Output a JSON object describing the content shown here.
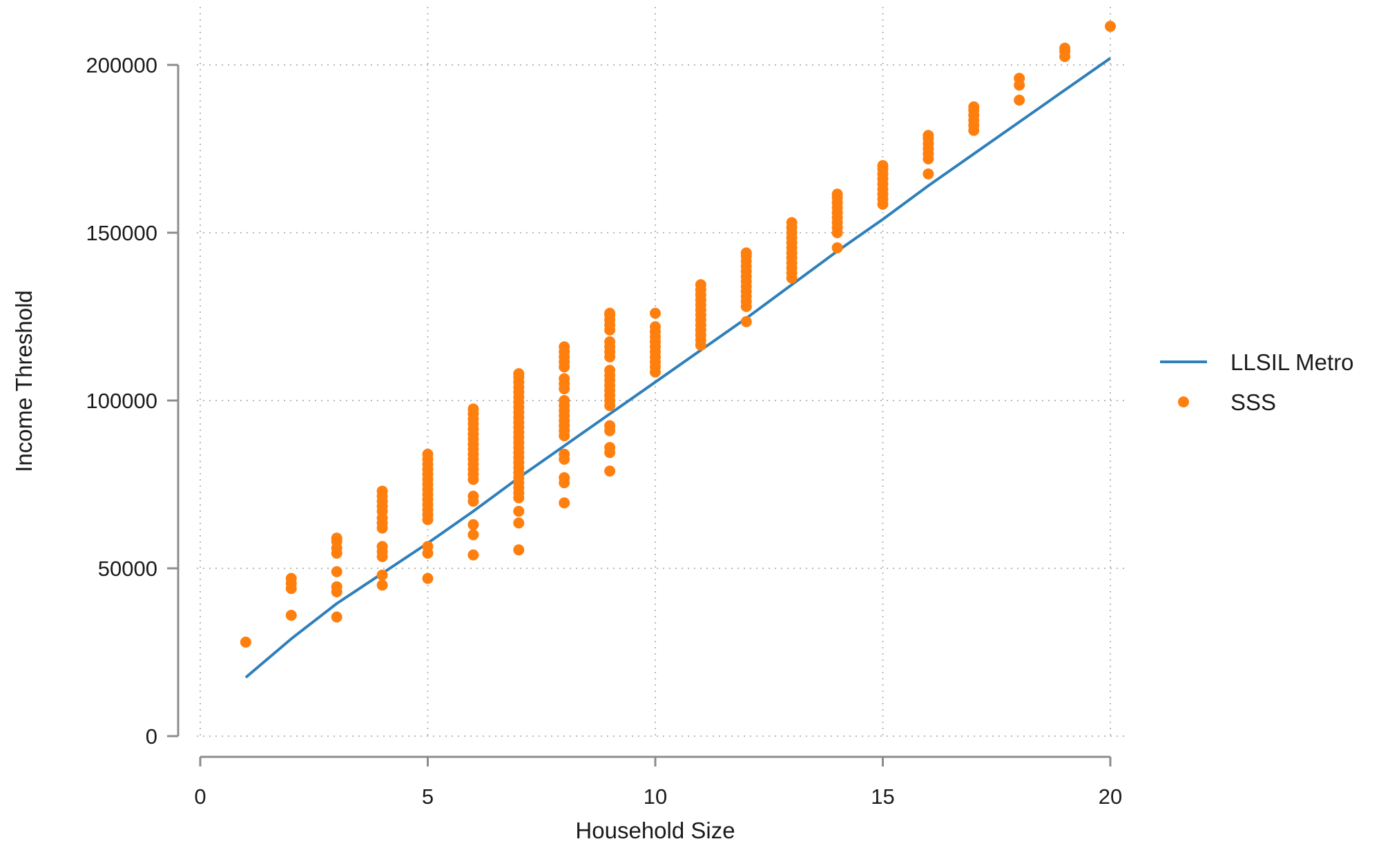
{
  "chart_data": {
    "type": "scatter",
    "title": "",
    "xlabel": "Household Size",
    "ylabel": "Income Threshold",
    "xlim": [
      0,
      20
    ],
    "ylim": [
      0,
      200000
    ],
    "x_ticks": [
      0,
      5,
      10,
      15,
      20
    ],
    "y_ticks": [
      0,
      50000,
      100000,
      150000,
      200000
    ],
    "grid": true,
    "legend_position": "right",
    "series": [
      {
        "name": "LLSIL Metro",
        "kind": "line",
        "color": "#2f7fba",
        "points": [
          [
            1,
            17500
          ],
          [
            2,
            29000
          ],
          [
            3,
            39500
          ],
          [
            4,
            48500
          ],
          [
            5,
            57500
          ],
          [
            6,
            67000
          ],
          [
            7,
            77000
          ],
          [
            8,
            86500
          ],
          [
            9,
            96000
          ],
          [
            10,
            105500
          ],
          [
            11,
            115000
          ],
          [
            12,
            124500
          ],
          [
            13,
            134500
          ],
          [
            14,
            144500
          ],
          [
            15,
            154000
          ],
          [
            16,
            164000
          ],
          [
            17,
            173500
          ],
          [
            18,
            183000
          ],
          [
            19,
            192500
          ],
          [
            20,
            202000
          ]
        ]
      },
      {
        "name": "SSS",
        "kind": "scatter",
        "color": "#ff7f0e",
        "points": [
          [
            1,
            28000
          ],
          [
            2,
            36000
          ],
          [
            2,
            44000
          ],
          [
            2,
            45500
          ],
          [
            2,
            47000
          ],
          [
            3,
            35500
          ],
          [
            3,
            43000
          ],
          [
            3,
            44500
          ],
          [
            3,
            49000
          ],
          [
            3,
            54500
          ],
          [
            3,
            56000
          ],
          [
            3,
            58000
          ],
          [
            3,
            59000
          ],
          [
            4,
            45000
          ],
          [
            4,
            48000
          ],
          [
            4,
            53500
          ],
          [
            4,
            55000
          ],
          [
            4,
            56500
          ],
          [
            4,
            62000
          ],
          [
            4,
            63500
          ],
          [
            4,
            65000
          ],
          [
            4,
            67000
          ],
          [
            4,
            68500
          ],
          [
            4,
            70000
          ],
          [
            4,
            71500
          ],
          [
            4,
            73000
          ],
          [
            5,
            47000
          ],
          [
            5,
            54500
          ],
          [
            5,
            56500
          ],
          [
            5,
            64500
          ],
          [
            5,
            66000
          ],
          [
            5,
            67500
          ],
          [
            5,
            69000
          ],
          [
            5,
            70500
          ],
          [
            5,
            72000
          ],
          [
            5,
            73500
          ],
          [
            5,
            75000
          ],
          [
            5,
            76500
          ],
          [
            5,
            78000
          ],
          [
            5,
            79500
          ],
          [
            5,
            81000
          ],
          [
            5,
            82500
          ],
          [
            5,
            84000
          ],
          [
            6,
            54000
          ],
          [
            6,
            60000
          ],
          [
            6,
            63000
          ],
          [
            6,
            70000
          ],
          [
            6,
            71500
          ],
          [
            6,
            76500
          ],
          [
            6,
            78000
          ],
          [
            6,
            79500
          ],
          [
            6,
            81000
          ],
          [
            6,
            82500
          ],
          [
            6,
            84000
          ],
          [
            6,
            85500
          ],
          [
            6,
            87000
          ],
          [
            6,
            88500
          ],
          [
            6,
            90000
          ],
          [
            6,
            91500
          ],
          [
            6,
            93000
          ],
          [
            6,
            94500
          ],
          [
            6,
            96000
          ],
          [
            6,
            97500
          ],
          [
            7,
            55500
          ],
          [
            7,
            63500
          ],
          [
            7,
            67000
          ],
          [
            7,
            71000
          ],
          [
            7,
            72500
          ],
          [
            7,
            74000
          ],
          [
            7,
            75500
          ],
          [
            7,
            77000
          ],
          [
            7,
            78500
          ],
          [
            7,
            80000
          ],
          [
            7,
            81500
          ],
          [
            7,
            83000
          ],
          [
            7,
            84500
          ],
          [
            7,
            86000
          ],
          [
            7,
            87500
          ],
          [
            7,
            89000
          ],
          [
            7,
            90500
          ],
          [
            7,
            92000
          ],
          [
            7,
            93500
          ],
          [
            7,
            95000
          ],
          [
            7,
            96500
          ],
          [
            7,
            98000
          ],
          [
            7,
            99500
          ],
          [
            7,
            101000
          ],
          [
            7,
            102500
          ],
          [
            7,
            104000
          ],
          [
            7,
            105500
          ],
          [
            7,
            107000
          ],
          [
            7,
            108000
          ],
          [
            8,
            69500
          ],
          [
            8,
            75500
          ],
          [
            8,
            77000
          ],
          [
            8,
            82500
          ],
          [
            8,
            84000
          ],
          [
            8,
            89500
          ],
          [
            8,
            91000
          ],
          [
            8,
            92500
          ],
          [
            8,
            94000
          ],
          [
            8,
            95500
          ],
          [
            8,
            97000
          ],
          [
            8,
            98500
          ],
          [
            8,
            100000
          ],
          [
            8,
            103500
          ],
          [
            8,
            105000
          ],
          [
            8,
            106500
          ],
          [
            8,
            110000
          ],
          [
            8,
            111500
          ],
          [
            8,
            113000
          ],
          [
            8,
            114500
          ],
          [
            8,
            116000
          ],
          [
            9,
            79000
          ],
          [
            9,
            84500
          ],
          [
            9,
            86000
          ],
          [
            9,
            91000
          ],
          [
            9,
            92500
          ],
          [
            9,
            98500
          ],
          [
            9,
            100000
          ],
          [
            9,
            101500
          ],
          [
            9,
            103000
          ],
          [
            9,
            104500
          ],
          [
            9,
            106000
          ],
          [
            9,
            107500
          ],
          [
            9,
            109000
          ],
          [
            9,
            113000
          ],
          [
            9,
            114500
          ],
          [
            9,
            116000
          ],
          [
            9,
            117500
          ],
          [
            9,
            121000
          ],
          [
            9,
            122500
          ],
          [
            9,
            124000
          ],
          [
            9,
            125500
          ],
          [
            9,
            126000
          ],
          [
            10,
            108500
          ],
          [
            10,
            110000
          ],
          [
            10,
            111500
          ],
          [
            10,
            113000
          ],
          [
            10,
            114500
          ],
          [
            10,
            116000
          ],
          [
            10,
            117500
          ],
          [
            10,
            119000
          ],
          [
            10,
            120500
          ],
          [
            10,
            122000
          ],
          [
            10,
            126000
          ],
          [
            11,
            116500
          ],
          [
            11,
            118000
          ],
          [
            11,
            119500
          ],
          [
            11,
            121000
          ],
          [
            11,
            122500
          ],
          [
            11,
            124000
          ],
          [
            11,
            125500
          ],
          [
            11,
            127000
          ],
          [
            11,
            128500
          ],
          [
            11,
            130000
          ],
          [
            11,
            131500
          ],
          [
            11,
            133000
          ],
          [
            11,
            134500
          ],
          [
            12,
            123500
          ],
          [
            12,
            128000
          ],
          [
            12,
            129500
          ],
          [
            12,
            131000
          ],
          [
            12,
            132500
          ],
          [
            12,
            134000
          ],
          [
            12,
            135500
          ],
          [
            12,
            137000
          ],
          [
            12,
            138500
          ],
          [
            12,
            140000
          ],
          [
            12,
            141500
          ],
          [
            12,
            143000
          ],
          [
            12,
            144000
          ],
          [
            13,
            136500
          ],
          [
            13,
            138000
          ],
          [
            13,
            139500
          ],
          [
            13,
            141000
          ],
          [
            13,
            142500
          ],
          [
            13,
            144000
          ],
          [
            13,
            145500
          ],
          [
            13,
            147000
          ],
          [
            13,
            148500
          ],
          [
            13,
            150000
          ],
          [
            13,
            151500
          ],
          [
            13,
            153000
          ],
          [
            14,
            145500
          ],
          [
            14,
            150000
          ],
          [
            14,
            151500
          ],
          [
            14,
            153000
          ],
          [
            14,
            154500
          ],
          [
            14,
            156000
          ],
          [
            14,
            157500
          ],
          [
            14,
            159000
          ],
          [
            14,
            160500
          ],
          [
            14,
            161500
          ],
          [
            15,
            158500
          ],
          [
            15,
            160000
          ],
          [
            15,
            161500
          ],
          [
            15,
            163000
          ],
          [
            15,
            164500
          ],
          [
            15,
            166000
          ],
          [
            15,
            167500
          ],
          [
            15,
            169000
          ],
          [
            15,
            170000
          ],
          [
            16,
            167500
          ],
          [
            16,
            172000
          ],
          [
            16,
            173500
          ],
          [
            16,
            175000
          ],
          [
            16,
            176500
          ],
          [
            16,
            178000
          ],
          [
            16,
            179000
          ],
          [
            17,
            180500
          ],
          [
            17,
            182000
          ],
          [
            17,
            183500
          ],
          [
            17,
            185000
          ],
          [
            17,
            186500
          ],
          [
            17,
            187500
          ],
          [
            18,
            189500
          ],
          [
            18,
            194000
          ],
          [
            18,
            196000
          ],
          [
            19,
            202500
          ],
          [
            19,
            204000
          ],
          [
            19,
            205000
          ],
          [
            20,
            211500
          ]
        ]
      }
    ]
  }
}
